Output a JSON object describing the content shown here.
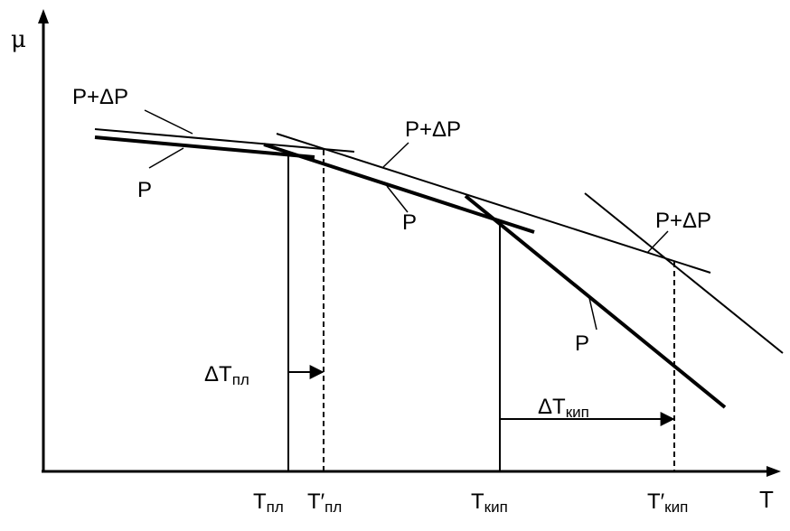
{
  "axes": {
    "y_label": "μ",
    "x_label": "T"
  },
  "curve_labels": {
    "solid_low_p": "P",
    "solid_low_p_plus": "P+ΔP",
    "liquid_p_plus": "P+ΔP",
    "liquid_p": "P",
    "gas_p_plus": "P+ΔP",
    "gas_p": "P"
  },
  "tick_labels": {
    "t_pl": {
      "main": "T",
      "sub": "пл"
    },
    "t_pl_prime": {
      "main": "T′",
      "sub": "пл"
    },
    "t_kip": {
      "main": "T",
      "sub": "кип"
    },
    "t_kip_prime": {
      "main": "T′",
      "sub": "кип"
    }
  },
  "delta_labels": {
    "delta_t_pl": {
      "main": "ΔT",
      "sub": "пл"
    },
    "delta_t_kip": {
      "main": "ΔT",
      "sub": "кип"
    }
  }
}
